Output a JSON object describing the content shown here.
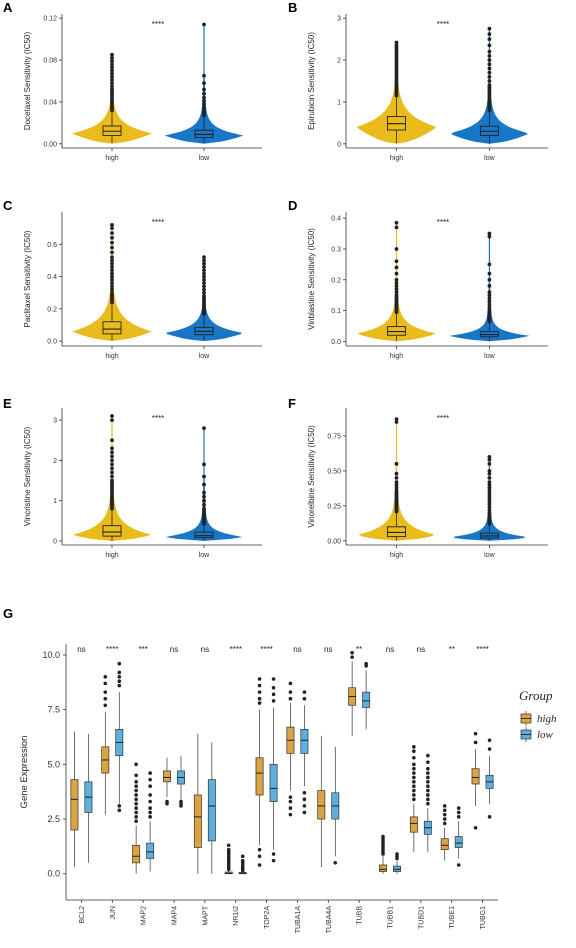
{
  "chart_data": [
    {
      "letter": "A",
      "type": "violin+box",
      "ylabel": "Docetaxel Sensitivity (IC50)",
      "categories": [
        "high",
        "low"
      ],
      "ylim": [
        -0.004,
        0.124
      ],
      "yticks": [
        "0.00",
        "0.04",
        "0.08",
        "0.12"
      ],
      "significance": "****",
      "groups": [
        {
          "name": "high",
          "color": "#E9BC1B",
          "q1": 0.008,
          "median": 0.012,
          "q3": 0.017,
          "whisker_low": 0.001,
          "whisker_high": 0.03,
          "max_density_at": 0.01,
          "outliers": [
            0.032,
            0.034,
            0.036,
            0.038,
            0.04,
            0.042,
            0.044,
            0.046,
            0.048,
            0.05,
            0.052,
            0.055,
            0.058,
            0.061,
            0.064,
            0.067,
            0.07,
            0.073,
            0.076,
            0.079,
            0.082,
            0.085
          ]
        },
        {
          "name": "low",
          "color": "#1776C5",
          "q1": 0.006,
          "median": 0.009,
          "q3": 0.013,
          "whisker_low": 0.001,
          "whisker_high": 0.025,
          "max_density_at": 0.008,
          "outliers": [
            0.027,
            0.029,
            0.031,
            0.033,
            0.035,
            0.038,
            0.041,
            0.044,
            0.048,
            0.052,
            0.058,
            0.065,
            0.114
          ]
        }
      ]
    },
    {
      "letter": "B",
      "type": "violin+box",
      "ylabel": "Epirubicin Sensitivity (IC50)",
      "categories": [
        "high",
        "low"
      ],
      "ylim": [
        -0.1,
        3.1
      ],
      "yticks": [
        "0",
        "1",
        "2",
        "3"
      ],
      "significance": "****",
      "groups": [
        {
          "name": "high",
          "color": "#E9BC1B",
          "q1": 0.33,
          "median": 0.48,
          "q3": 0.65,
          "whisker_low": 0.02,
          "whisker_high": 1.1,
          "max_density_at": 0.4,
          "outliers": [
            1.15,
            1.2,
            1.25,
            1.3,
            1.35,
            1.4,
            1.45,
            1.5,
            1.55,
            1.6,
            1.65,
            1.7,
            1.75,
            1.8,
            1.85,
            1.9,
            1.95,
            2.0,
            2.05,
            2.1,
            2.15,
            2.2,
            2.25,
            2.3,
            2.35,
            2.42
          ]
        },
        {
          "name": "low",
          "color": "#1776C5",
          "q1": 0.2,
          "median": 0.3,
          "q3": 0.42,
          "whisker_low": 0.01,
          "whisker_high": 0.75,
          "max_density_at": 0.25,
          "outliers": [
            0.8,
            0.85,
            0.9,
            0.95,
            1.0,
            1.05,
            1.1,
            1.15,
            1.2,
            1.25,
            1.3,
            1.35,
            1.4,
            1.5,
            1.6,
            1.7,
            1.8,
            1.9,
            2.0,
            2.1,
            2.2,
            2.35,
            2.5,
            2.62,
            2.75
          ]
        }
      ]
    },
    {
      "letter": "C",
      "type": "violin+box",
      "ylabel": "Paclitaxel Sensitivity (IC50)",
      "categories": [
        "high",
        "low"
      ],
      "ylim": [
        -0.03,
        0.8
      ],
      "yticks": [
        "0.0",
        "0.2",
        "0.4",
        "0.6"
      ],
      "significance": "****",
      "groups": [
        {
          "name": "high",
          "color": "#E9BC1B",
          "q1": 0.045,
          "median": 0.075,
          "q3": 0.12,
          "whisker_low": 0.005,
          "whisker_high": 0.23,
          "max_density_at": 0.06,
          "outliers": [
            0.24,
            0.255,
            0.27,
            0.285,
            0.3,
            0.32,
            0.34,
            0.36,
            0.38,
            0.4,
            0.42,
            0.44,
            0.46,
            0.48,
            0.5,
            0.52,
            0.55,
            0.58,
            0.61,
            0.64,
            0.67,
            0.7,
            0.72
          ]
        },
        {
          "name": "low",
          "color": "#1776C5",
          "q1": 0.04,
          "median": 0.06,
          "q3": 0.085,
          "whisker_low": 0.005,
          "whisker_high": 0.16,
          "max_density_at": 0.05,
          "outliers": [
            0.17,
            0.18,
            0.19,
            0.2,
            0.21,
            0.22,
            0.23,
            0.24,
            0.25,
            0.26,
            0.27,
            0.28,
            0.3,
            0.32,
            0.34,
            0.36,
            0.38,
            0.4,
            0.42,
            0.44,
            0.46,
            0.48,
            0.5,
            0.52
          ]
        }
      ]
    },
    {
      "letter": "D",
      "type": "violin+box",
      "ylabel": "Vinblastine Sensitivity (IC50)",
      "categories": [
        "high",
        "low"
      ],
      "ylim": [
        -0.015,
        0.42
      ],
      "yticks": [
        "0.0",
        "0.1",
        "0.2",
        "0.3",
        "0.4"
      ],
      "significance": "****",
      "groups": [
        {
          "name": "high",
          "color": "#E9BC1B",
          "q1": 0.02,
          "median": 0.032,
          "q3": 0.048,
          "whisker_low": 0.002,
          "whisker_high": 0.09,
          "max_density_at": 0.025,
          "outliers": [
            0.095,
            0.1,
            0.105,
            0.11,
            0.115,
            0.12,
            0.125,
            0.13,
            0.135,
            0.14,
            0.145,
            0.15,
            0.16,
            0.17,
            0.18,
            0.19,
            0.2,
            0.22,
            0.24,
            0.26,
            0.3,
            0.37,
            0.385
          ]
        },
        {
          "name": "low",
          "color": "#1776C5",
          "q1": 0.015,
          "median": 0.022,
          "q3": 0.032,
          "whisker_low": 0.002,
          "whisker_high": 0.06,
          "max_density_at": 0.018,
          "outliers": [
            0.065,
            0.07,
            0.075,
            0.08,
            0.085,
            0.09,
            0.095,
            0.1,
            0.11,
            0.12,
            0.13,
            0.14,
            0.15,
            0.16,
            0.18,
            0.2,
            0.22,
            0.25,
            0.34,
            0.35
          ]
        }
      ]
    },
    {
      "letter": "E",
      "type": "violin+box",
      "ylabel": "Vincristine Sensitivity (IC50)",
      "categories": [
        "high",
        "low"
      ],
      "ylim": [
        -0.1,
        3.3
      ],
      "yticks": [
        "0",
        "1",
        "2",
        "3"
      ],
      "significance": "****",
      "groups": [
        {
          "name": "high",
          "color": "#E9BC1B",
          "q1": 0.12,
          "median": 0.22,
          "q3": 0.38,
          "whisker_low": 0.005,
          "whisker_high": 0.75,
          "max_density_at": 0.15,
          "outliers": [
            0.8,
            0.85,
            0.9,
            0.95,
            1.0,
            1.05,
            1.1,
            1.15,
            1.2,
            1.25,
            1.3,
            1.35,
            1.4,
            1.45,
            1.5,
            1.6,
            1.7,
            1.8,
            1.9,
            2.0,
            2.1,
            2.2,
            2.3,
            2.5,
            3.0,
            3.1
          ]
        },
        {
          "name": "low",
          "color": "#1776C5",
          "q1": 0.08,
          "median": 0.13,
          "q3": 0.22,
          "whisker_low": 0.005,
          "whisker_high": 0.4,
          "max_density_at": 0.1,
          "outliers": [
            0.42,
            0.45,
            0.48,
            0.52,
            0.56,
            0.6,
            0.65,
            0.7,
            0.75,
            0.8,
            0.9,
            1.0,
            1.1,
            1.2,
            1.4,
            1.6,
            1.9,
            2.8
          ]
        }
      ]
    },
    {
      "letter": "F",
      "type": "violin+box",
      "ylabel": "Vinorelbine Sensitivity (IC50)",
      "categories": [
        "high",
        "low"
      ],
      "ylim": [
        -0.03,
        0.95
      ],
      "yticks": [
        "0.00",
        "0.25",
        "0.50",
        "0.75"
      ],
      "significance": "****",
      "groups": [
        {
          "name": "high",
          "color": "#E9BC1B",
          "q1": 0.03,
          "median": 0.06,
          "q3": 0.1,
          "whisker_low": 0.002,
          "whisker_high": 0.2,
          "max_density_at": 0.04,
          "outliers": [
            0.21,
            0.22,
            0.23,
            0.24,
            0.25,
            0.26,
            0.27,
            0.28,
            0.29,
            0.3,
            0.31,
            0.32,
            0.33,
            0.34,
            0.35,
            0.36,
            0.38,
            0.4,
            0.42,
            0.45,
            0.48,
            0.55,
            0.85,
            0.87
          ]
        },
        {
          "name": "low",
          "color": "#1776C5",
          "q1": 0.02,
          "median": 0.035,
          "q3": 0.055,
          "whisker_low": 0.002,
          "whisker_high": 0.11,
          "max_density_at": 0.025,
          "outliers": [
            0.12,
            0.13,
            0.14,
            0.15,
            0.16,
            0.17,
            0.18,
            0.19,
            0.2,
            0.22,
            0.24,
            0.26,
            0.28,
            0.3,
            0.32,
            0.34,
            0.36,
            0.38,
            0.4,
            0.42,
            0.45,
            0.48,
            0.5,
            0.55,
            0.58,
            0.6
          ]
        }
      ]
    },
    {
      "letter": "G",
      "type": "grouped-box",
      "ylabel": "Gene Expression",
      "ylim": [
        -1.2,
        10.5
      ],
      "yticks": [
        "0.0",
        "2.5",
        "5.0",
        "7.5",
        "10.0"
      ],
      "legend": {
        "title": "Group",
        "items": [
          {
            "name": "high",
            "color": "#D9A441"
          },
          {
            "name": "low",
            "color": "#5BB0E0"
          }
        ],
        "placement": "right"
      },
      "genes": [
        {
          "name": "BCL2",
          "sig": "ns",
          "high": {
            "q1": 2.0,
            "median": 3.4,
            "q3": 4.3,
            "lo": 0.3,
            "hi": 6.5,
            "out": []
          },
          "low": {
            "q1": 2.8,
            "median": 3.5,
            "q3": 4.2,
            "lo": 0.5,
            "hi": 6.4,
            "out": []
          }
        },
        {
          "name": "JUN",
          "sig": "****",
          "high": {
            "q1": 4.6,
            "median": 5.2,
            "q3": 5.8,
            "lo": 2.7,
            "hi": 7.4,
            "out": [
              7.7,
              8.0,
              8.3,
              8.7,
              9.0
            ]
          },
          "low": {
            "q1": 5.4,
            "median": 6.0,
            "q3": 6.6,
            "lo": 3.2,
            "hi": 8.3,
            "out": [
              2.9,
              3.1,
              8.6,
              8.8,
              9.0,
              9.2,
              9.6
            ]
          }
        },
        {
          "name": "MAP2",
          "sig": "***",
          "high": {
            "q1": 0.5,
            "median": 0.8,
            "q3": 1.3,
            "lo": 0.0,
            "hi": 2.2,
            "out": [
              2.4,
              2.6,
              2.8,
              3.0,
              3.2,
              3.4,
              3.6,
              3.8,
              4.0,
              4.2,
              4.5,
              5.0
            ]
          },
          "low": {
            "q1": 0.7,
            "median": 1.0,
            "q3": 1.4,
            "lo": 0.1,
            "hi": 2.4,
            "out": [
              2.6,
              2.8,
              3.0,
              3.3,
              3.6,
              4.0,
              4.3,
              4.6
            ]
          }
        },
        {
          "name": "MAP4",
          "sig": "ns",
          "high": {
            "q1": 4.2,
            "median": 4.4,
            "q3": 4.7,
            "lo": 3.5,
            "hi": 5.3,
            "out": [
              3.2,
              3.3
            ]
          },
          "low": {
            "q1": 4.1,
            "median": 4.4,
            "q3": 4.7,
            "lo": 3.4,
            "hi": 5.4,
            "out": [
              3.1,
              3.2,
              3.3
            ]
          }
        },
        {
          "name": "MAPT",
          "sig": "ns",
          "high": {
            "q1": 1.2,
            "median": 2.6,
            "q3": 3.6,
            "lo": 0.0,
            "hi": 6.4,
            "out": []
          },
          "low": {
            "q1": 1.5,
            "median": 3.1,
            "q3": 4.3,
            "lo": 0.0,
            "hi": 6.0,
            "out": []
          }
        },
        {
          "name": "NR1I2",
          "sig": "****",
          "high": {
            "q1": 0.0,
            "median": 0.02,
            "q3": 0.08,
            "lo": 0.0,
            "hi": 0.15,
            "out": [
              0.2,
              0.3,
              0.4,
              0.5,
              0.6,
              0.7,
              0.8,
              0.9,
              1.0,
              1.1,
              1.3
            ]
          },
          "low": {
            "q1": 0.0,
            "median": 0.02,
            "q3": 0.06,
            "lo": 0.0,
            "hi": 0.12,
            "out": [
              0.15,
              0.2,
              0.25,
              0.3,
              0.4,
              0.5,
              0.6,
              0.8
            ]
          }
        },
        {
          "name": "TOP2A",
          "sig": "****",
          "high": {
            "q1": 3.6,
            "median": 4.6,
            "q3": 5.3,
            "lo": 1.3,
            "hi": 7.5,
            "out": [
              0.4,
              0.8,
              1.1,
              7.8,
              8.0,
              8.3,
              8.6,
              8.9
            ]
          },
          "low": {
            "q1": 3.3,
            "median": 3.9,
            "q3": 5.0,
            "lo": 1.1,
            "hi": 7.6,
            "out": [
              0.6,
              0.9,
              7.9,
              8.2,
              8.5,
              8.9
            ]
          }
        },
        {
          "name": "TUBA1A",
          "sig": "ns",
          "high": {
            "q1": 5.5,
            "median": 6.1,
            "q3": 6.7,
            "lo": 3.8,
            "hi": 7.8,
            "out": [
              2.7,
              3.0,
              3.3,
              3.5,
              8.0,
              8.3,
              8.7
            ]
          },
          "low": {
            "q1": 5.5,
            "median": 6.1,
            "q3": 6.6,
            "lo": 4.0,
            "hi": 7.7,
            "out": [
              2.8,
              3.1,
              3.4,
              3.7,
              8.0,
              8.3
            ]
          }
        },
        {
          "name": "TUBA4A",
          "sig": "ns",
          "high": {
            "q1": 2.5,
            "median": 3.1,
            "q3": 3.8,
            "lo": 0.3,
            "hi": 6.3,
            "out": []
          },
          "low": {
            "q1": 2.5,
            "median": 3.1,
            "q3": 3.7,
            "lo": 0.8,
            "hi": 5.8,
            "out": [
              0.5
            ]
          }
        },
        {
          "name": "TUBB",
          "sig": "**",
          "high": {
            "q1": 7.7,
            "median": 8.1,
            "q3": 8.5,
            "lo": 6.3,
            "hi": 9.7,
            "out": [
              9.9,
              10.1
            ]
          },
          "low": {
            "q1": 7.6,
            "median": 7.9,
            "q3": 8.3,
            "lo": 6.6,
            "hi": 9.3,
            "out": [
              9.5,
              9.6
            ]
          }
        },
        {
          "name": "TUBB1",
          "sig": "ns",
          "high": {
            "q1": 0.1,
            "median": 0.2,
            "q3": 0.4,
            "lo": 0.0,
            "hi": 0.8,
            "out": [
              0.9,
              1.0,
              1.1,
              1.2,
              1.3,
              1.4,
              1.5,
              1.6,
              1.7
            ]
          },
          "low": {
            "q1": 0.1,
            "median": 0.2,
            "q3": 0.35,
            "lo": 0.0,
            "hi": 0.6,
            "out": [
              0.7,
              0.8,
              0.9
            ]
          }
        },
        {
          "name": "TUBD1",
          "sig": "ns",
          "high": {
            "q1": 1.9,
            "median": 2.3,
            "q3": 2.6,
            "lo": 1.0,
            "hi": 3.2,
            "out": [
              3.4,
              3.6,
              3.8,
              4.0,
              4.2,
              4.4,
              4.6,
              4.8,
              5.0,
              5.3,
              5.6,
              5.8
            ]
          },
          "low": {
            "q1": 1.8,
            "median": 2.1,
            "q3": 2.4,
            "lo": 1.0,
            "hi": 3.0,
            "out": [
              3.2,
              3.4,
              3.6,
              3.8,
              4.0,
              4.2,
              4.4,
              4.6,
              4.8,
              5.1,
              5.4
            ]
          }
        },
        {
          "name": "TUBE1",
          "sig": "**",
          "high": {
            "q1": 1.1,
            "median": 1.3,
            "q3": 1.6,
            "lo": 0.6,
            "hi": 2.1,
            "out": [
              2.3,
              2.5,
              2.7,
              2.9,
              3.1
            ]
          },
          "low": {
            "q1": 1.2,
            "median": 1.4,
            "q3": 1.7,
            "lo": 0.7,
            "hi": 2.4,
            "out": [
              0.4,
              2.6,
              2.8,
              3.0
            ]
          }
        },
        {
          "name": "TUBG1",
          "sig": "****",
          "high": {
            "q1": 4.1,
            "median": 4.4,
            "q3": 4.8,
            "lo": 3.1,
            "hi": 5.7,
            "out": [
              2.1,
              6.0,
              6.4
            ]
          },
          "low": {
            "q1": 3.9,
            "median": 4.2,
            "q3": 4.5,
            "lo": 3.2,
            "hi": 5.4,
            "out": [
              2.6,
              5.7,
              6.1
            ]
          }
        }
      ]
    }
  ]
}
